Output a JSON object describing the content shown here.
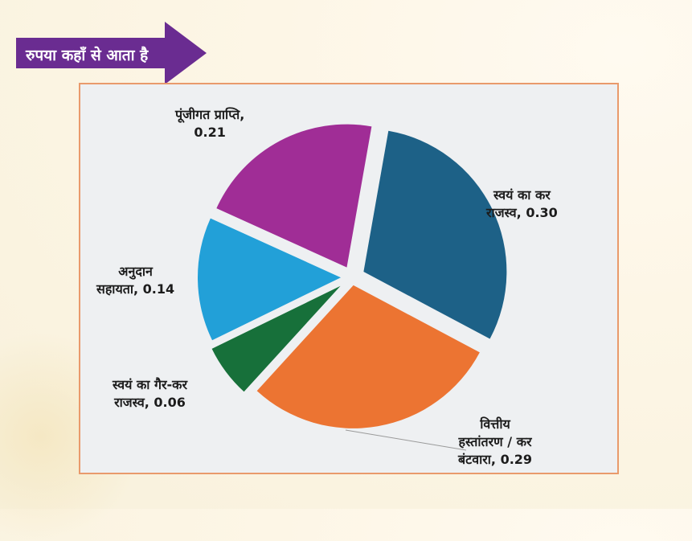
{
  "banner": {
    "title": "रुपया कहाँ से आता है",
    "color": "#6a2c91"
  },
  "chart_data": {
    "type": "pie",
    "title": "रुपया कहाँ से आता है",
    "start_angle_deg": 10,
    "direction": "clockwise",
    "exploded": true,
    "slices": [
      {
        "name": "स्वयं का कर राजस्व",
        "value": 0.3,
        "color": "#1d6187",
        "label_line1": "स्वयं का कर",
        "label_line2": "राजस्व, 0.30"
      },
      {
        "name": "वित्तीय हस्तांतरण / कर बंटवारा",
        "value": 0.29,
        "color": "#ec7432",
        "label_line1": "वित्तीय",
        "label_line2": "हस्तांतरण / कर",
        "label_line3": "बंटवारा, 0.29"
      },
      {
        "name": "स्वयं का गैर-कर राजस्व",
        "value": 0.06,
        "color": "#17703a",
        "label_line1": "स्वयं का गैर-कर",
        "label_line2": "राजस्व, 0.06"
      },
      {
        "name": "अनुदान सहायता",
        "value": 0.14,
        "color": "#22a0d8",
        "label_line1": "अनुदान",
        "label_line2": "सहायता, 0.14"
      },
      {
        "name": "पूंजीगत प्राप्ति",
        "value": 0.21,
        "color": "#a02d96",
        "label_line1": "पूंजीगत प्राप्ति,",
        "label_line2": "0.21"
      }
    ],
    "legend": "none",
    "frame_border_color": "#e99a6c",
    "plot_background": "#eef0f2"
  }
}
